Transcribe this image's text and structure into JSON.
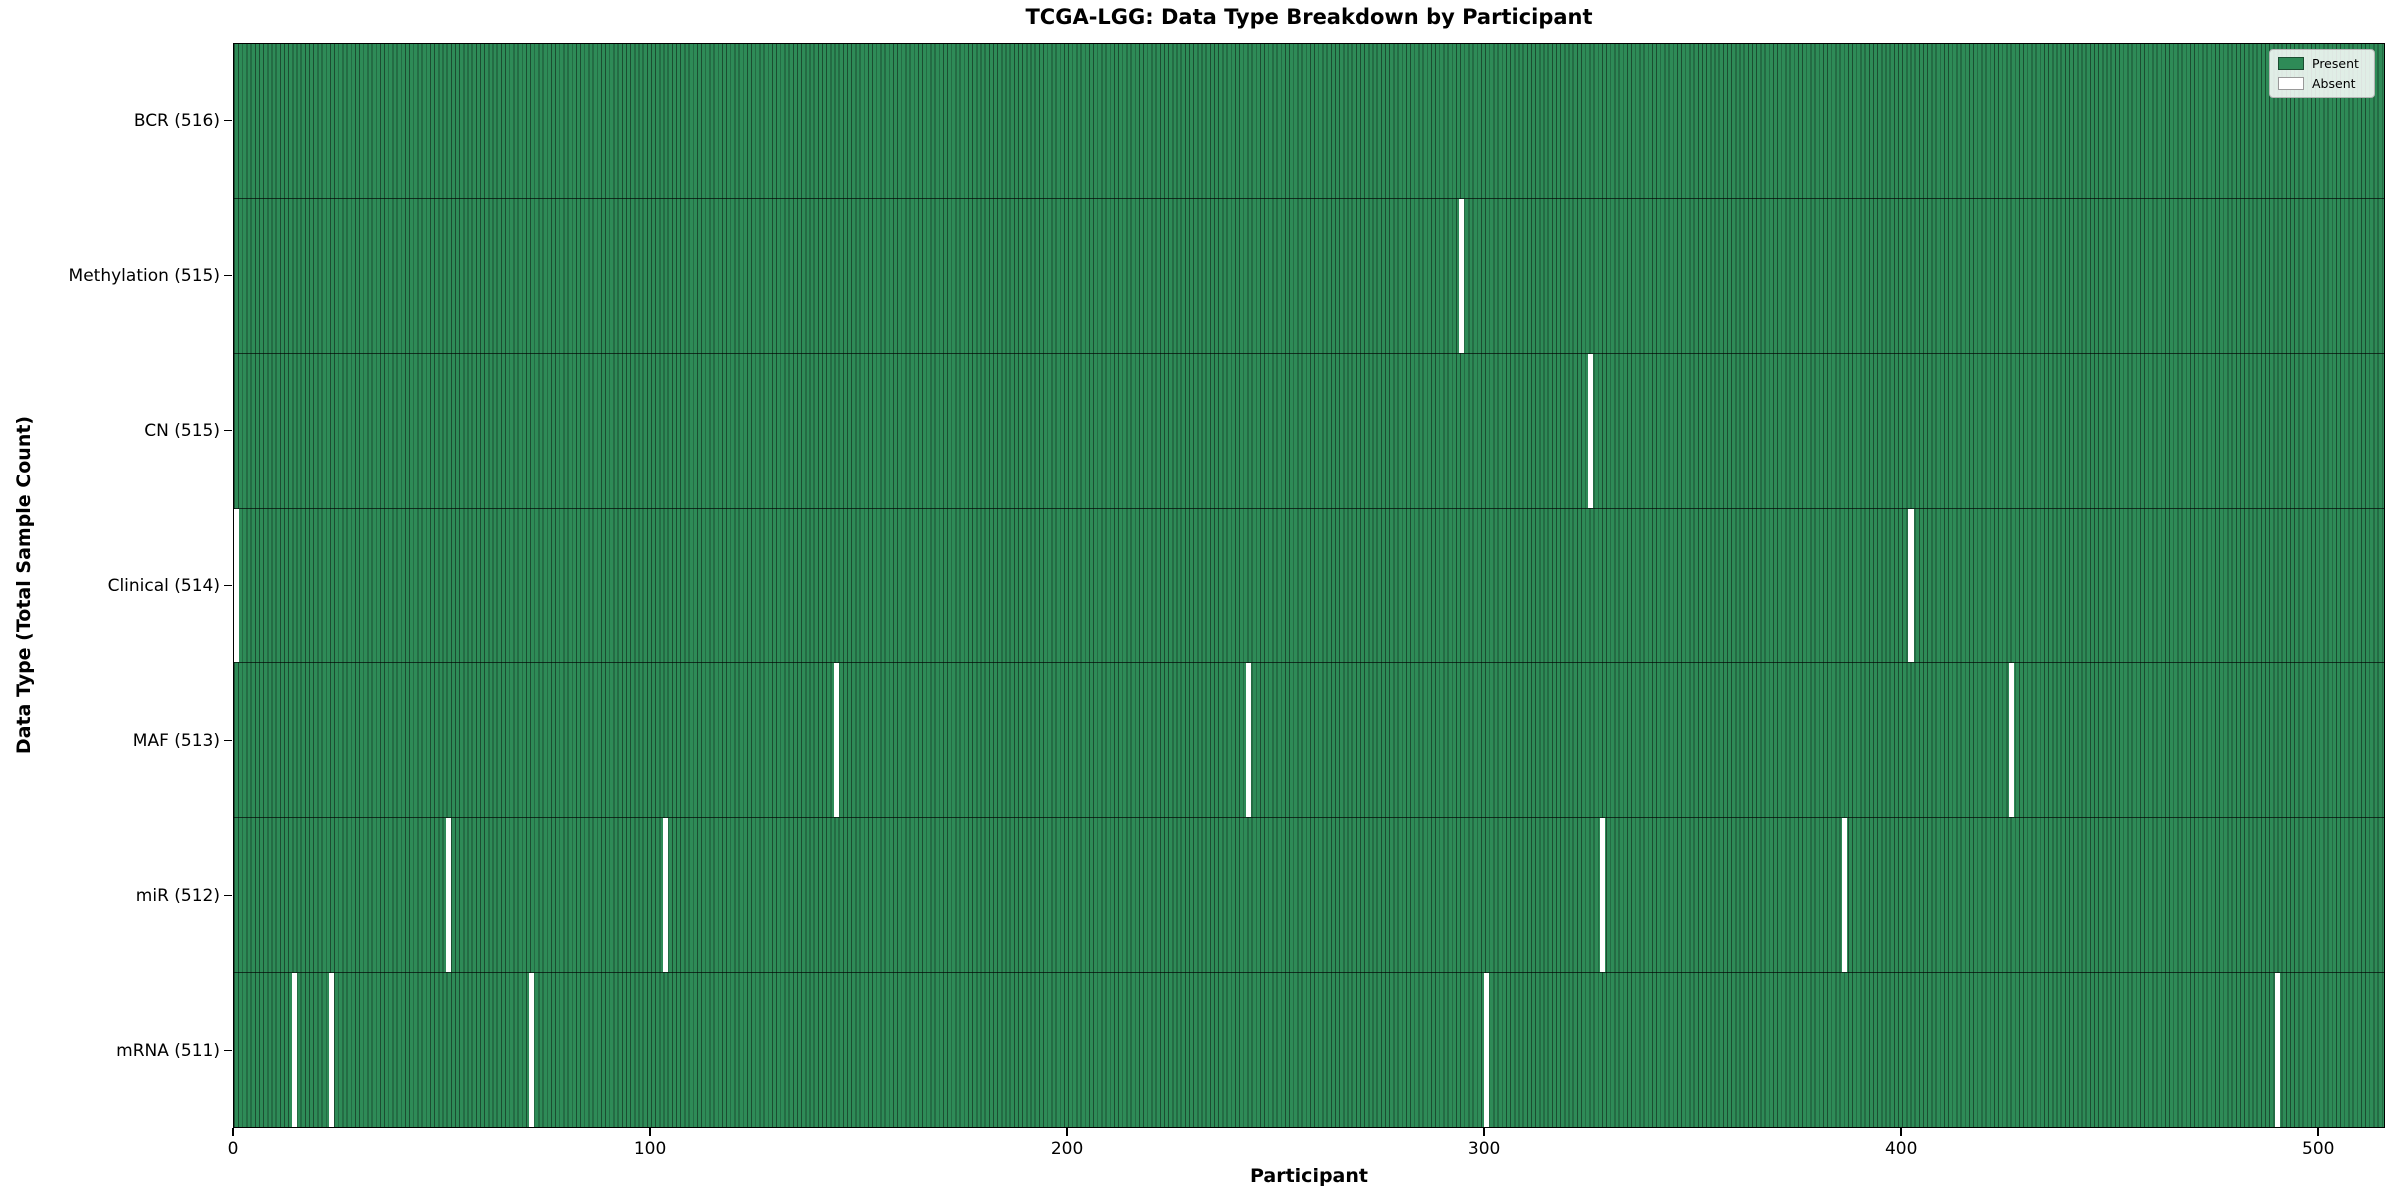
{
  "figure": {
    "title": "TCGA-LGG: Data Type Breakdown by Participant",
    "xlabel": "Participant",
    "ylabel": "Data Type (Total Sample Count)"
  },
  "legend": {
    "items": [
      {
        "name": "present",
        "label": "Present",
        "color": "#2e8b57",
        "edge": "#1b4d31"
      },
      {
        "name": "absent",
        "label": "Absent",
        "color": "#ffffff",
        "edge": "#999999"
      }
    ]
  },
  "chart_data": {
    "type": "heatmap",
    "title": "TCGA-LGG: Data Type Breakdown by Participant",
    "xlabel": "Participant",
    "ylabel": "Data Type (Total Sample Count)",
    "n_participants": 516,
    "x_ticks": [
      0,
      100,
      200,
      300,
      400,
      500
    ],
    "xlim": [
      0,
      516
    ],
    "grid": false,
    "legend_position": "upper right",
    "legend_entries": [
      "Present",
      "Absent"
    ],
    "colors": {
      "present": "#2e8b57",
      "absent": "#ffffff",
      "cell_edge": "#1b4d31"
    },
    "rows": [
      {
        "label": "BCR (516)",
        "data_type": "BCR",
        "total_samples": 516,
        "absent_participants": []
      },
      {
        "label": "Methylation (515)",
        "data_type": "Methylation",
        "total_samples": 515,
        "absent_participants": [
          294
        ]
      },
      {
        "label": "CN (515)",
        "data_type": "CN",
        "total_samples": 515,
        "absent_participants": [
          325
        ]
      },
      {
        "label": "Clinical (514)",
        "data_type": "Clinical",
        "total_samples": 514,
        "absent_participants": [
          0,
          402
        ]
      },
      {
        "label": "MAF (513)",
        "data_type": "MAF",
        "total_samples": 513,
        "absent_participants": [
          144,
          243,
          426
        ]
      },
      {
        "label": "miR (512)",
        "data_type": "miR",
        "total_samples": 512,
        "absent_participants": [
          51,
          103,
          328,
          386
        ]
      },
      {
        "label": "mRNA (511)",
        "data_type": "mRNA",
        "total_samples": 511,
        "absent_participants": [
          14,
          23,
          71,
          300,
          490
        ]
      }
    ]
  }
}
